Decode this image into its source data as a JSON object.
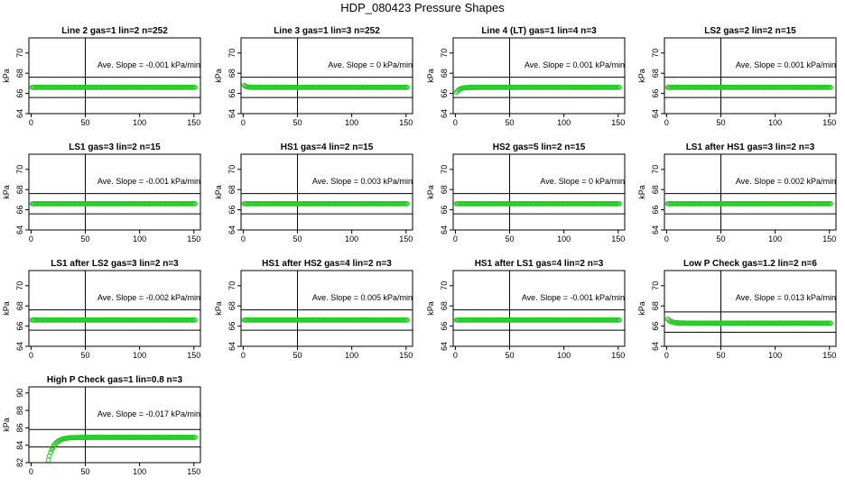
{
  "title": "HDP_080423  Pressure Shapes",
  "style": {
    "point_color": "#22cc22",
    "line_color": "#000000"
  },
  "chart_data": [
    {
      "type": "scatter",
      "title": "Line 2 gas=1 lin=2 n=252",
      "ylabel": "kPa",
      "xlim": [
        -2,
        156
      ],
      "ylim": [
        64,
        71.5
      ],
      "yticks": [
        64,
        66,
        68,
        70
      ],
      "xticks": [
        0,
        50,
        100,
        150
      ],
      "hlines": [
        67.6,
        65.6
      ],
      "vline": 50,
      "annotation": "Ave. Slope = -0.001  kPa/min",
      "x_range": [
        1,
        151
      ],
      "curve": {
        "kind": "flat",
        "level": 66.6
      }
    },
    {
      "type": "scatter",
      "title": "Line 3 gas=1 lin=3 n=252",
      "ylabel": "kPa",
      "xlim": [
        -2,
        156
      ],
      "ylim": [
        64,
        71.5
      ],
      "yticks": [
        64,
        66,
        68,
        70
      ],
      "xticks": [
        0,
        50,
        100,
        150
      ],
      "hlines": [
        67.6,
        65.6
      ],
      "vline": 50,
      "annotation": "Ave. Slope = 0  kPa/min",
      "x_range": [
        1,
        151
      ],
      "curve": {
        "kind": "start",
        "start": 66.8,
        "level": 66.6,
        "tau": 2
      }
    },
    {
      "type": "scatter",
      "title": "Line 4 (LT) gas=1 lin=4 n=3",
      "ylabel": "kPa",
      "xlim": [
        -2,
        156
      ],
      "ylim": [
        64,
        71.5
      ],
      "yticks": [
        64,
        66,
        68,
        70
      ],
      "xticks": [
        0,
        50,
        100,
        150
      ],
      "hlines": [
        67.6,
        65.6
      ],
      "vline": 50,
      "annotation": "Ave. Slope = 0.001  kPa/min",
      "x_range": [
        1,
        151
      ],
      "curve": {
        "kind": "start",
        "start": 66.1,
        "level": 66.6,
        "tau": 3
      }
    },
    {
      "type": "scatter",
      "title": "LS2 gas=2 lin=2 n=15",
      "ylabel": "kPa",
      "xlim": [
        -2,
        156
      ],
      "ylim": [
        64,
        71.5
      ],
      "yticks": [
        64,
        66,
        68,
        70
      ],
      "xticks": [
        0,
        50,
        100,
        150
      ],
      "hlines": [
        67.6,
        65.6
      ],
      "vline": 50,
      "annotation": "Ave. Slope = 0.001  kPa/min",
      "x_range": [
        1,
        151
      ],
      "curve": {
        "kind": "flat",
        "level": 66.6
      }
    },
    {
      "type": "scatter",
      "title": "LS1 gas=3 lin=2 n=15",
      "ylabel": "kPa",
      "xlim": [
        -2,
        156
      ],
      "ylim": [
        64,
        71.5
      ],
      "yticks": [
        64,
        66,
        68,
        70
      ],
      "xticks": [
        0,
        50,
        100,
        150
      ],
      "hlines": [
        67.6,
        65.6
      ],
      "vline": 50,
      "annotation": "Ave. Slope = -0.001  kPa/min",
      "x_range": [
        1,
        151
      ],
      "curve": {
        "kind": "flat",
        "level": 66.6
      }
    },
    {
      "type": "scatter",
      "title": "HS1 gas=4 lin=2 n=15",
      "ylabel": "kPa",
      "xlim": [
        -2,
        156
      ],
      "ylim": [
        64,
        71.5
      ],
      "yticks": [
        64,
        66,
        68,
        70
      ],
      "xticks": [
        0,
        50,
        100,
        150
      ],
      "hlines": [
        67.6,
        65.6
      ],
      "vline": 50,
      "annotation": "Ave. Slope = 0.003  kPa/min",
      "x_range": [
        1,
        151
      ],
      "curve": {
        "kind": "flat",
        "level": 66.6
      }
    },
    {
      "type": "scatter",
      "title": "HS2 gas=5 lin=2 n=15",
      "ylabel": "kPa",
      "xlim": [
        -2,
        156
      ],
      "ylim": [
        64,
        71.5
      ],
      "yticks": [
        64,
        66,
        68,
        70
      ],
      "xticks": [
        0,
        50,
        100,
        150
      ],
      "hlines": [
        67.6,
        65.6
      ],
      "vline": 50,
      "annotation": "Ave. Slope = 0  kPa/min",
      "x_range": [
        1,
        151
      ],
      "curve": {
        "kind": "flat",
        "level": 66.6
      }
    },
    {
      "type": "scatter",
      "title": "LS1 after HS1 gas=3 lin=2 n=3",
      "ylabel": "kPa",
      "xlim": [
        -2,
        156
      ],
      "ylim": [
        64,
        71.5
      ],
      "yticks": [
        64,
        66,
        68,
        70
      ],
      "xticks": [
        0,
        50,
        100,
        150
      ],
      "hlines": [
        67.6,
        65.6
      ],
      "vline": 50,
      "annotation": "Ave. Slope = 0.002  kPa/min",
      "x_range": [
        1,
        151
      ],
      "curve": {
        "kind": "flat",
        "level": 66.6
      }
    },
    {
      "type": "scatter",
      "title": "LS1 after LS2 gas=3 lin=2 n=3",
      "ylabel": "kPa",
      "xlim": [
        -2,
        156
      ],
      "ylim": [
        64,
        71.5
      ],
      "yticks": [
        64,
        66,
        68,
        70
      ],
      "xticks": [
        0,
        50,
        100,
        150
      ],
      "hlines": [
        67.6,
        65.6
      ],
      "vline": 50,
      "annotation": "Ave. Slope = -0.002  kPa/min",
      "x_range": [
        1,
        151
      ],
      "curve": {
        "kind": "flat",
        "level": 66.6
      }
    },
    {
      "type": "scatter",
      "title": "HS1 after HS2 gas=4 lin=2 n=3",
      "ylabel": "kPa",
      "xlim": [
        -2,
        156
      ],
      "ylim": [
        64,
        71.5
      ],
      "yticks": [
        64,
        66,
        68,
        70
      ],
      "xticks": [
        0,
        50,
        100,
        150
      ],
      "hlines": [
        67.6,
        65.6
      ],
      "vline": 50,
      "annotation": "Ave. Slope = 0.005  kPa/min",
      "x_range": [
        1,
        151
      ],
      "curve": {
        "kind": "flat",
        "level": 66.6
      }
    },
    {
      "type": "scatter",
      "title": "HS1 after LS1 gas=4 lin=2 n=3",
      "ylabel": "kPa",
      "xlim": [
        -2,
        156
      ],
      "ylim": [
        64,
        71.5
      ],
      "yticks": [
        64,
        66,
        68,
        70
      ],
      "xticks": [
        0,
        50,
        100,
        150
      ],
      "hlines": [
        67.6,
        65.6
      ],
      "vline": 50,
      "annotation": "Ave. Slope = -0.001  kPa/min",
      "x_range": [
        1,
        151
      ],
      "curve": {
        "kind": "flat",
        "level": 66.6
      }
    },
    {
      "type": "scatter",
      "title": "Low P Check gas=1.2 lin=2 n=6",
      "ylabel": "kPa",
      "xlim": [
        -2,
        156
      ],
      "ylim": [
        64,
        71.5
      ],
      "yticks": [
        64,
        66,
        68,
        70
      ],
      "xticks": [
        0,
        50,
        100,
        150
      ],
      "hlines": [
        67.4,
        65.4
      ],
      "vline": 50,
      "annotation": "Ave. Slope = 0.013  kPa/min",
      "x_range": [
        1,
        151
      ],
      "curve": {
        "kind": "start",
        "start": 66.7,
        "level": 66.3,
        "tau": 3
      }
    },
    {
      "type": "scatter",
      "title": "High P Check gas=1 lin=0.8 n=3",
      "ylabel": "kPa",
      "xlim": [
        -2,
        156
      ],
      "ylim": [
        82,
        90.7
      ],
      "yticks": [
        82,
        84,
        86,
        88,
        90
      ],
      "xticks": [
        0,
        50,
        100,
        150
      ],
      "hlines": [
        85.8,
        83.8
      ],
      "vline": 50,
      "annotation": "Ave. Slope = -0.017  kPa/min",
      "x_range": [
        16,
        151
      ],
      "curve": {
        "kind": "rise",
        "start": 82.3,
        "level": 84.9,
        "tau": 5
      }
    }
  ]
}
